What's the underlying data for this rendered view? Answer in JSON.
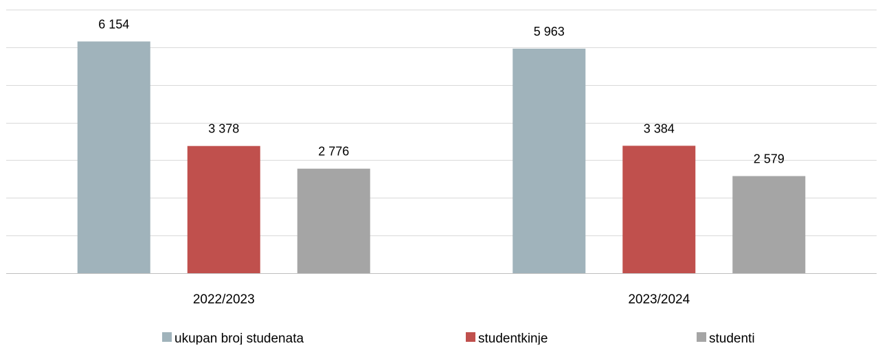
{
  "chart_data": {
    "type": "bar",
    "title": "",
    "xlabel": "",
    "ylabel": "",
    "categories": [
      "2022/2023",
      "2023/2024"
    ],
    "series": [
      {
        "name": "ukupan broj studenata",
        "color": "#a0b3bb",
        "values": [
          6154,
          5963
        ],
        "labels": [
          "6 154",
          "5 963"
        ]
      },
      {
        "name": "studentkinje",
        "color": "#c0504d",
        "values": [
          3378,
          3384
        ],
        "labels": [
          "3 378",
          "3 384"
        ]
      },
      {
        "name": "studenti",
        "color": "#a5a5a5",
        "values": [
          2776,
          2579
        ],
        "labels": [
          "2 776",
          "2 579"
        ]
      }
    ],
    "ylim": [
      0,
      7000
    ],
    "y_gridlines": [
      0,
      1000,
      2000,
      3000,
      4000,
      5000,
      6000,
      7000
    ],
    "grid": true,
    "y_tick_labels_shown": false,
    "legend_position": "bottom"
  }
}
